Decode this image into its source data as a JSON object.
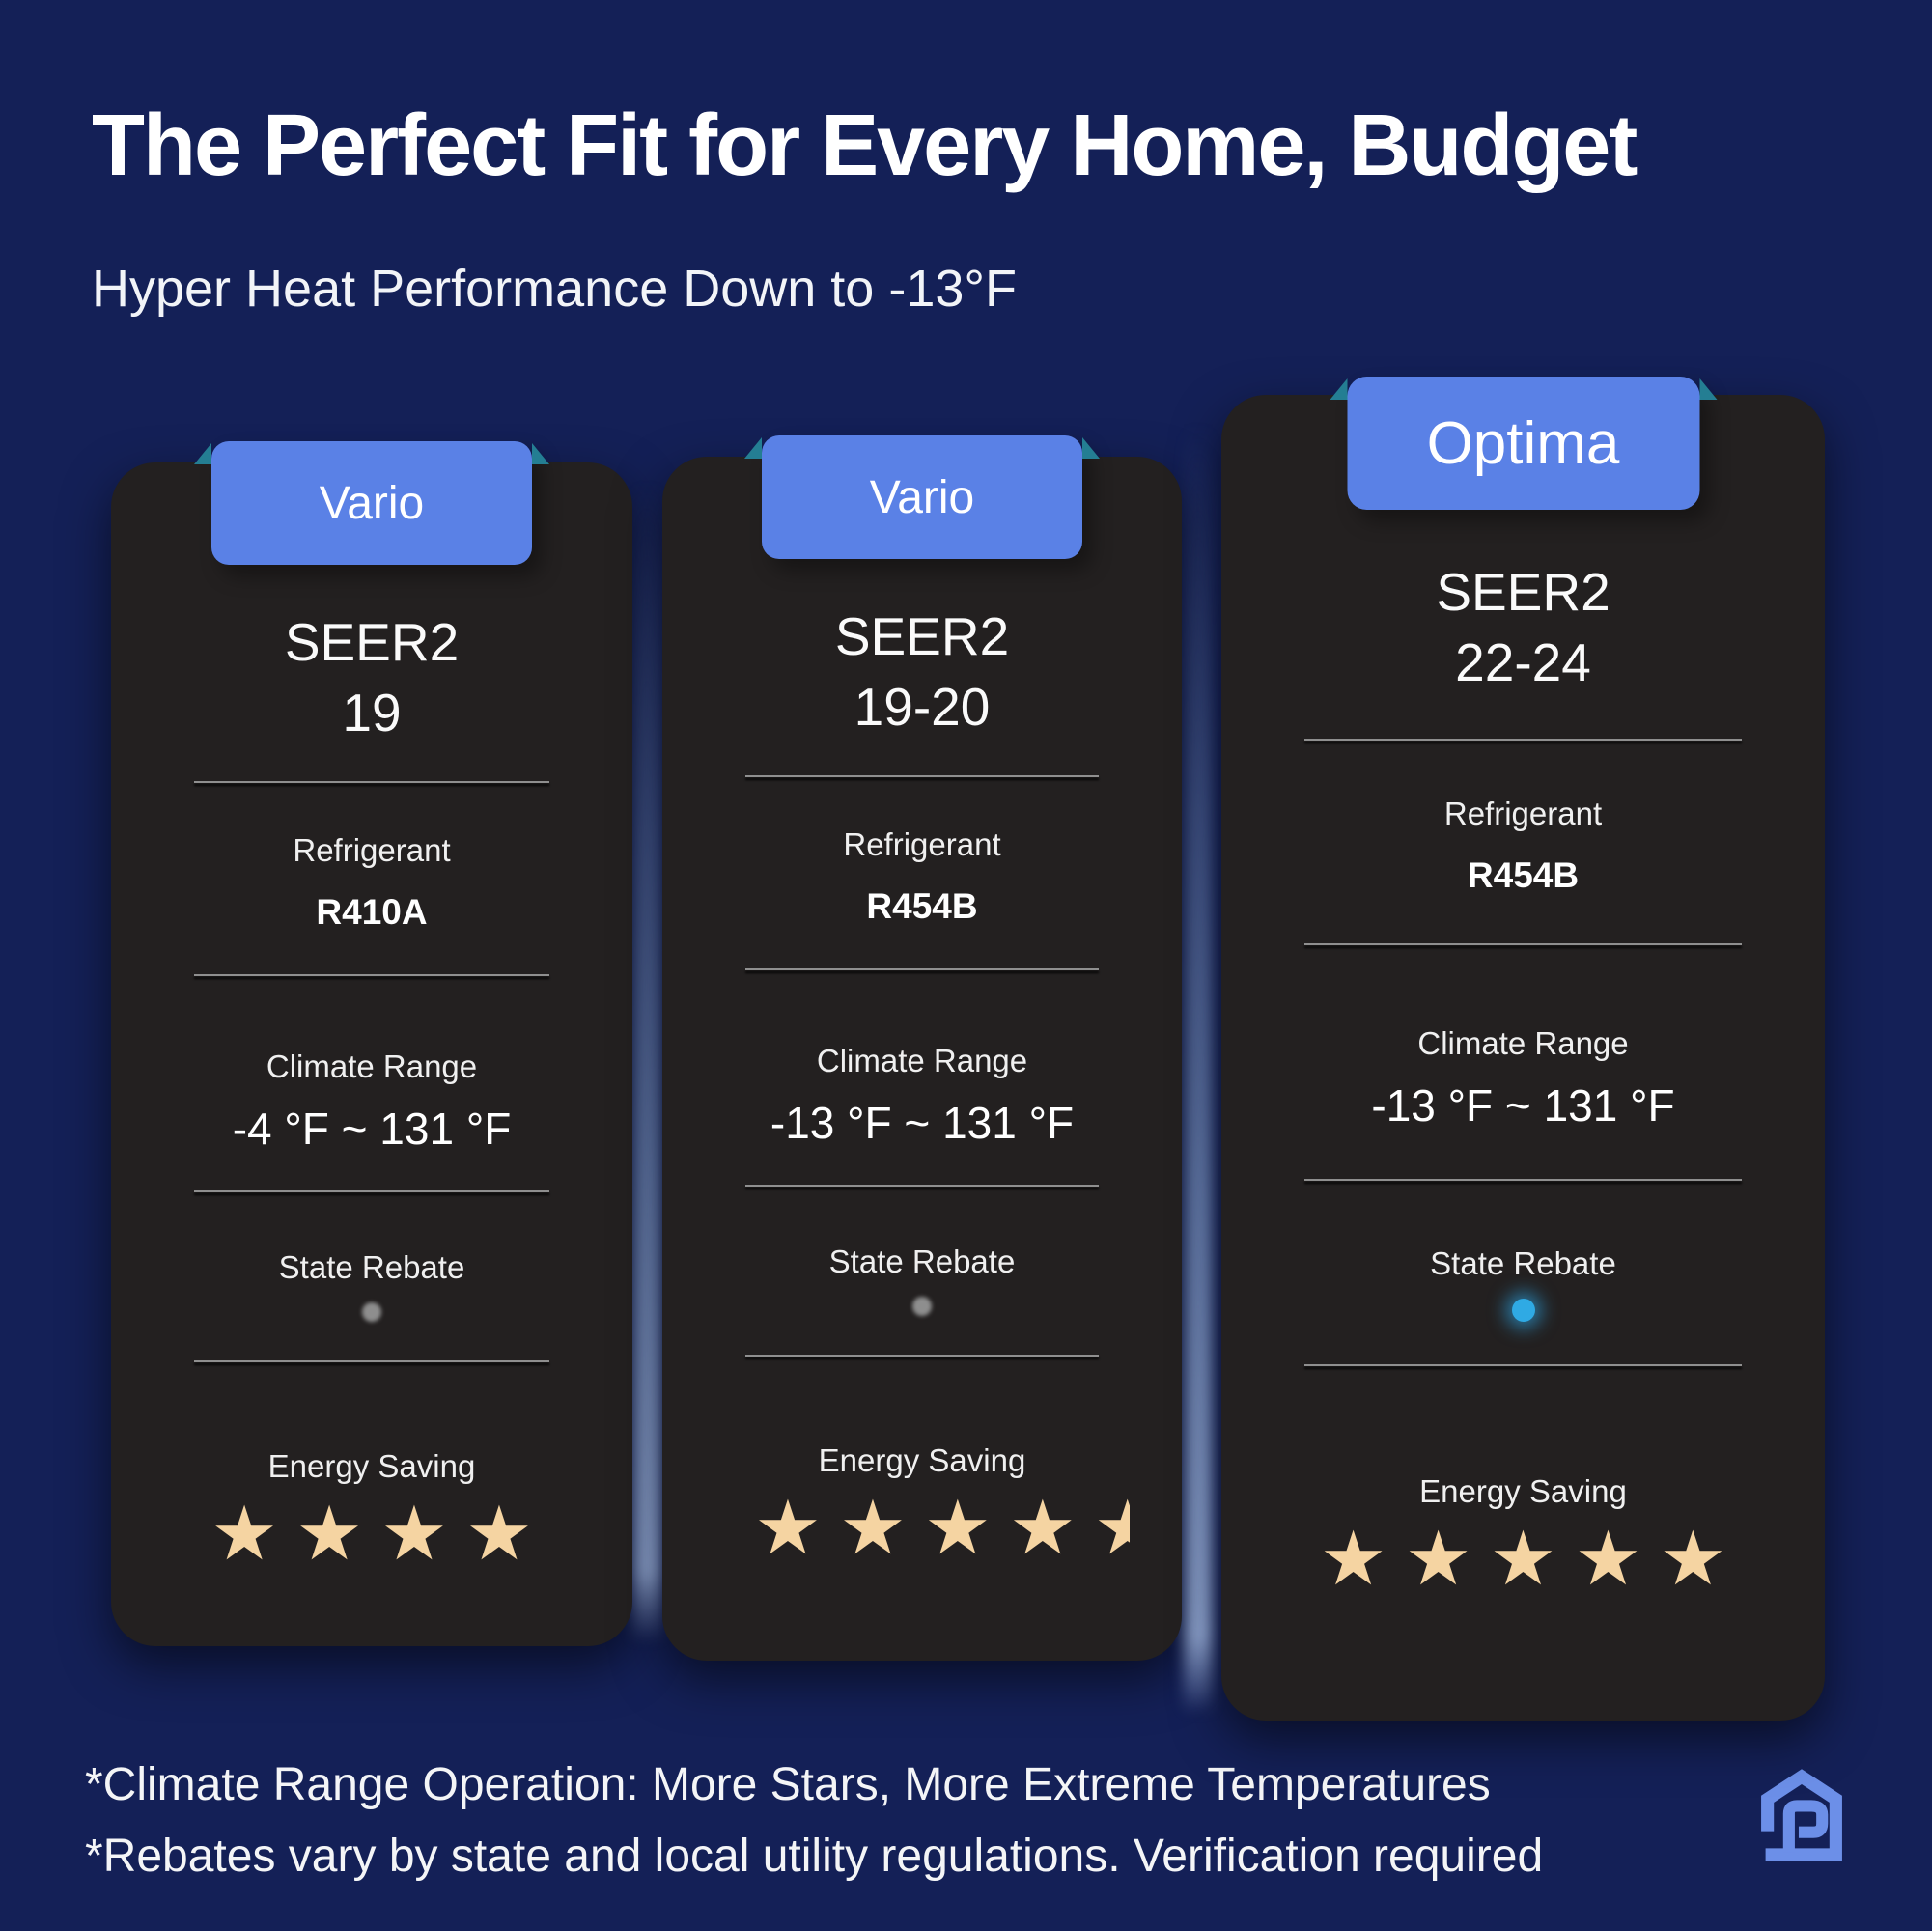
{
  "page": {
    "title": "The Perfect Fit for Every Home, Budget",
    "subtitle": "Hyper Heat Performance Down to -13°F",
    "footnote1": "*Climate Range Operation: More Stars, More Extreme Temperatures",
    "footnote2": "*Rebates vary by state and local utility regulations. Verification required"
  },
  "colors": {
    "background": "#142057",
    "card": "#232020",
    "badge": "#5A81E6",
    "ribbon_fold": "#247E93",
    "star": "#F5D4A2",
    "rebate_active_dot": "#2FAAE4",
    "rebate_inactive_dot": "#8E8E8E",
    "logo": "#6C8FE8",
    "text": "#FFFFFF"
  },
  "cards": [
    {
      "badge": "Vario",
      "seer_label": "SEER2",
      "seer_value": "19",
      "refrigerant_label": "Refrigerant",
      "refrigerant_value": "R410A",
      "climate_label": "Climate Range",
      "climate_value": "-4 °F ~ 131 °F",
      "rebate_label": "State Rebate",
      "rebate_dot_class": "dot gray",
      "rebate_available": false,
      "energy_label": "Energy Saving",
      "energy_stars": 4
    },
    {
      "badge": "Vario",
      "seer_label": "SEER2",
      "seer_value": "19-20",
      "refrigerant_label": "Refrigerant",
      "refrigerant_value": "R454B",
      "climate_label": "Climate Range",
      "climate_value": "-13 °F ~ 131 °F",
      "rebate_label": "State Rebate",
      "rebate_dot_class": "dot gray",
      "rebate_available": false,
      "energy_label": "Energy Saving",
      "energy_stars": 4.5
    },
    {
      "badge": "Optima",
      "seer_label": "SEER2",
      "seer_value": "22-24",
      "refrigerant_label": "Refrigerant",
      "refrigerant_value": "R454B",
      "climate_label": "Climate Range",
      "climate_value": "-13 °F ~ 131 °F",
      "rebate_label": "State Rebate",
      "rebate_dot_class": "dot cyan",
      "rebate_available": true,
      "energy_label": "Energy Saving",
      "energy_stars": 5
    }
  ]
}
